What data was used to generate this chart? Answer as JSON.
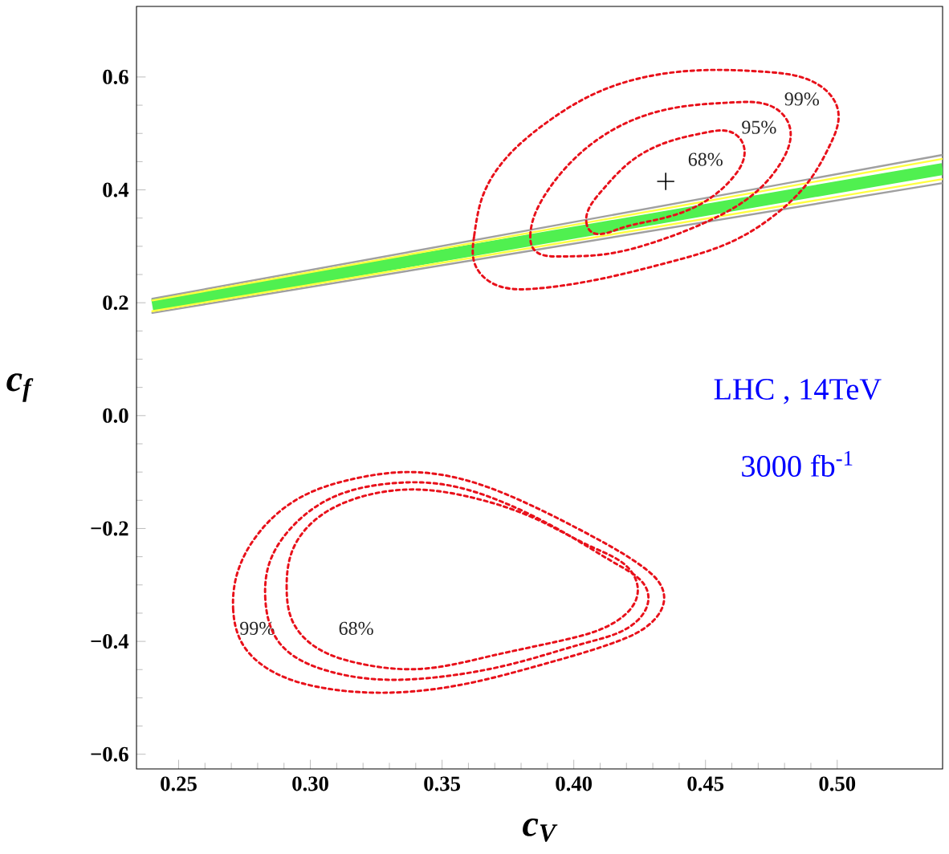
{
  "chart_data": {
    "type": "line",
    "xlabel": "c$_{V}$",
    "ylabel": "c$_{f}$",
    "xlim": [
      0.234,
      0.54
    ],
    "ylim": [
      -0.626,
      0.725
    ],
    "xticks": [
      0.25,
      {
        "value": 0.3,
        "label": "0.30"
      },
      0.35,
      {
        "value": 0.4,
        "label": "0.40"
      },
      0.45,
      {
        "value": 0.5,
        "label": "0.50"
      }
    ],
    "yticks": [
      {
        "value": -0.6,
        "label": "−0.6"
      },
      {
        "value": -0.4,
        "label": "−0.4"
      },
      {
        "value": -0.2,
        "label": "−0.2"
      },
      {
        "value": 0,
        "label": "0.0"
      },
      0.2,
      0.4,
      0.6
    ],
    "series": [
      {
        "color": "#a0a0a0",
        "x": [
          0.24,
          0.54
        ],
        "values": [
          0.207,
          0.462
        ]
      },
      {
        "color": "#a0a0a0",
        "x": [
          0.24,
          0.54
        ],
        "values": [
          0.182,
          0.412
        ]
      },
      {
        "color": "#50f050",
        "x": [
          0.24,
          0.54
        ],
        "values": [
          0.195,
          0.437
        ]
      },
      {
        "color": "#ffff40",
        "x": [
          0.24,
          0.54
        ],
        "values": [
          0.204,
          0.455
        ]
      },
      {
        "color": "#ffff40",
        "x": [
          0.24,
          0.54
        ],
        "values": [
          0.185,
          0.419
        ]
      },
      {
        "type": "scatter",
        "color": "#000000",
        "marker": "cross",
        "x": [
          0.4349
        ],
        "values": [
          0.415
        ]
      }
    ],
    "annotations": [
      "99%",
      "95%",
      "68%",
      "99%",
      "68%",
      "LHC , 14TeV",
      "3000 fb$^{-1}$"
    ]
  }
}
